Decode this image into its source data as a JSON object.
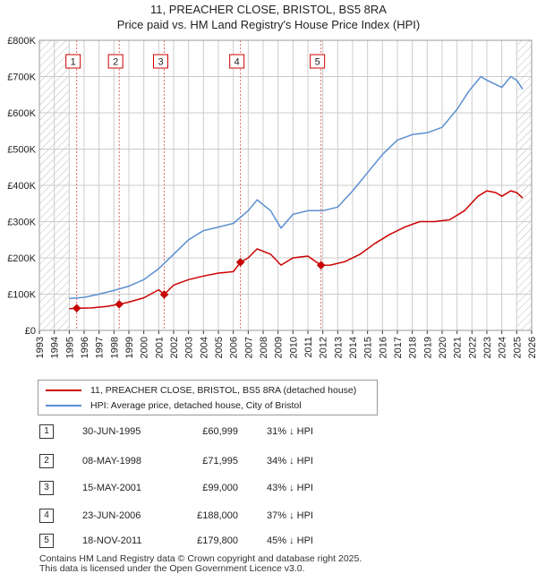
{
  "titles": {
    "line1": "11, PREACHER CLOSE, BRISTOL, BS5 8RA",
    "line2": "Price paid vs. HM Land Registry's House Price Index (HPI)"
  },
  "colors": {
    "property": "#cc0000",
    "hpi": "#5b8fd0",
    "marker_line": "#e06666",
    "grid": "#cccccc",
    "hatch": "#bbbbbb"
  },
  "legend": {
    "property_label": "11, PREACHER CLOSE, BRISTOL, BS5 8RA (detached house)",
    "hpi_label": "HPI: Average price, detached house, City of Bristol"
  },
  "transactions": [
    {
      "num": "1",
      "date": "30-JUN-1995",
      "price": "£60,999",
      "hpi": "31% ↓ HPI"
    },
    {
      "num": "2",
      "date": "08-MAY-1998",
      "price": "£71,995",
      "hpi": "34% ↓ HPI"
    },
    {
      "num": "3",
      "date": "15-MAY-2001",
      "price": "£99,000",
      "hpi": "43% ↓ HPI"
    },
    {
      "num": "4",
      "date": "23-JUN-2006",
      "price": "£188,000",
      "hpi": "37% ↓ HPI"
    },
    {
      "num": "5",
      "date": "18-NOV-2011",
      "price": "£179,800",
      "hpi": "45% ↓ HPI"
    }
  ],
  "footer": {
    "line1": "Contains HM Land Registry data © Crown copyright and database right 2025.",
    "line2": "This data is licensed under the Open Government Licence v3.0."
  },
  "chart_data": {
    "type": "line",
    "title": "11, PREACHER CLOSE, BRISTOL, BS5 8RA",
    "subtitle": "Price paid vs. HM Land Registry's House Price Index (HPI)",
    "xlabel": "",
    "ylabel": "",
    "xlim": [
      1993,
      2026
    ],
    "ylim": [
      0,
      800000
    ],
    "grid": true,
    "legend_position": "below",
    "x_ticks": [
      1993,
      1994,
      1995,
      1996,
      1997,
      1998,
      1999,
      2000,
      2001,
      2002,
      2003,
      2004,
      2005,
      2006,
      2007,
      2008,
      2009,
      2010,
      2011,
      2012,
      2013,
      2014,
      2015,
      2016,
      2017,
      2018,
      2019,
      2020,
      2021,
      2022,
      2023,
      2024,
      2025,
      2026
    ],
    "y_ticks": [
      {
        "value": 0,
        "label": "£0"
      },
      {
        "value": 100000,
        "label": "£100K"
      },
      {
        "value": 200000,
        "label": "£200K"
      },
      {
        "value": 300000,
        "label": "£300K"
      },
      {
        "value": 400000,
        "label": "£400K"
      },
      {
        "value": 500000,
        "label": "£500K"
      },
      {
        "value": 600000,
        "label": "£600K"
      },
      {
        "value": 700000,
        "label": "£700K"
      },
      {
        "value": 800000,
        "label": "£800K"
      }
    ],
    "hatched_ranges": [
      [
        1993,
        1995.0
      ],
      [
        2025.0,
        2026
      ]
    ],
    "series": [
      {
        "name": "HPI: Average price, detached house, City of Bristol",
        "color": "#5b8fd0",
        "x": [
          1995.0,
          1996.0,
          1997.0,
          1998.0,
          1999.0,
          2000.0,
          2001.0,
          2002.0,
          2003.0,
          2004.0,
          2005.0,
          2006.0,
          2007.0,
          2007.6,
          2008.5,
          2009.2,
          2010.0,
          2011.0,
          2012.0,
          2013.0,
          2014.0,
          2015.0,
          2016.0,
          2017.0,
          2018.0,
          2019.0,
          2020.0,
          2021.0,
          2021.8,
          2022.6,
          2023.0,
          2023.5,
          2024.0,
          2024.6,
          2025.0,
          2025.4
        ],
        "values": [
          88000,
          91000,
          100000,
          110000,
          122000,
          140000,
          170000,
          210000,
          250000,
          275000,
          285000,
          295000,
          330000,
          360000,
          330000,
          282000,
          320000,
          330000,
          330000,
          340000,
          385000,
          435000,
          485000,
          525000,
          540000,
          545000,
          560000,
          610000,
          660000,
          700000,
          690000,
          680000,
          670000,
          700000,
          690000,
          665000
        ]
      },
      {
        "name": "11, PREACHER CLOSE, BRISTOL, BS5 8RA (detached house)",
        "color": "#cc0000",
        "x": [
          1995.0,
          1995.5,
          1996.5,
          1997.5,
          1998.35,
          1999.0,
          2000.0,
          2001.0,
          2001.37,
          2002.0,
          2003.0,
          2004.0,
          2005.0,
          2006.0,
          2006.48,
          2007.0,
          2007.6,
          2008.5,
          2009.2,
          2010.0,
          2011.0,
          2011.88,
          2012.5,
          2013.5,
          2014.5,
          2015.5,
          2016.5,
          2017.5,
          2018.5,
          2019.5,
          2020.5,
          2021.5,
          2022.4,
          2023.0,
          2023.6,
          2024.0,
          2024.6,
          2025.0,
          2025.4
        ],
        "values": [
          60000,
          60999,
          62000,
          66000,
          71995,
          78000,
          90000,
          112000,
          99000,
          125000,
          140000,
          150000,
          158000,
          162000,
          188000,
          200000,
          225000,
          210000,
          180000,
          200000,
          205000,
          179800,
          180000,
          190000,
          210000,
          240000,
          265000,
          285000,
          300000,
          300000,
          305000,
          330000,
          370000,
          385000,
          380000,
          370000,
          385000,
          380000,
          365000
        ]
      }
    ],
    "sale_markers": [
      {
        "label": "1",
        "x": 1995.5,
        "value": 60999
      },
      {
        "label": "2",
        "x": 1998.35,
        "value": 71995
      },
      {
        "label": "3",
        "x": 2001.37,
        "value": 99000
      },
      {
        "label": "4",
        "x": 2006.48,
        "value": 188000
      },
      {
        "label": "5",
        "x": 2011.88,
        "value": 179800
      }
    ]
  }
}
